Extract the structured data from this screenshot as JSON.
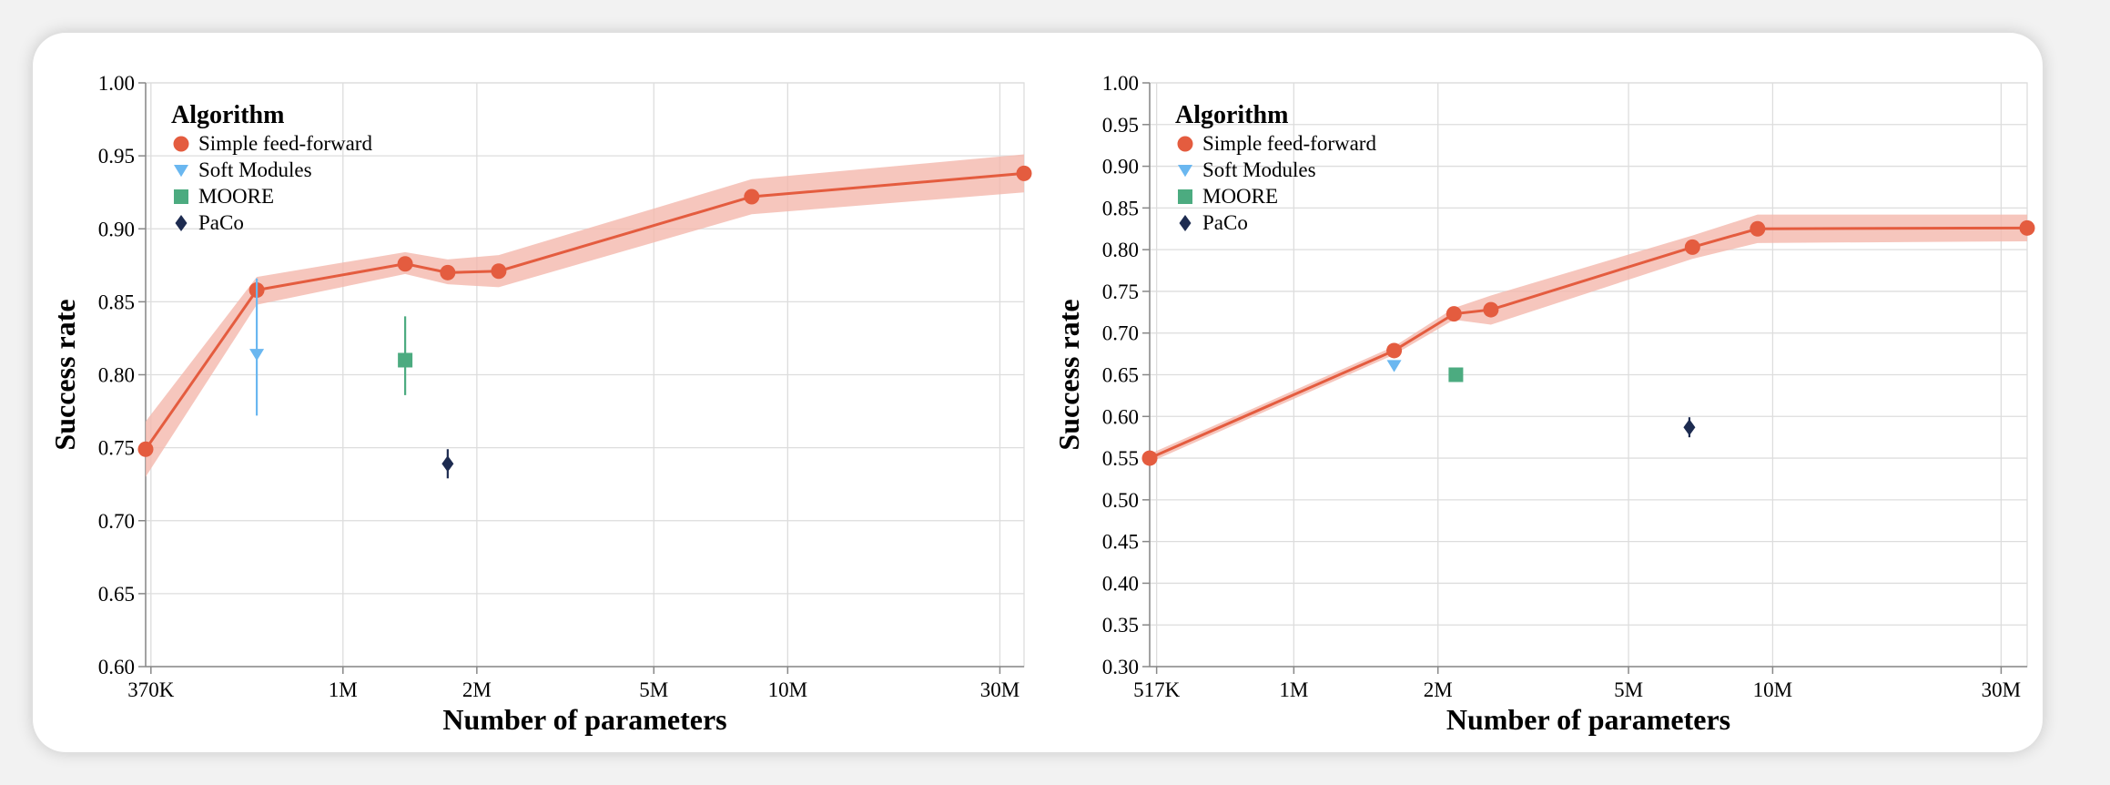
{
  "colors": {
    "simple": "#e45c3f",
    "band": "#f4b8ad",
    "soft": "#6ab7f0",
    "moore": "#4cab80",
    "paco": "#1d2b50"
  },
  "chart_data": [
    {
      "type": "line",
      "xlabel": "Number of parameters",
      "ylabel": "Success rate",
      "x_scale": "log",
      "xlim": [
        360000,
        34000000
      ],
      "ylim": [
        0.6,
        1.0
      ],
      "y_ticks": [
        "0.60",
        "0.65",
        "0.70",
        "0.75",
        "0.80",
        "0.85",
        "0.90",
        "0.95",
        "1.00"
      ],
      "x_ticks": [
        {
          "v": 370000,
          "label": "370K"
        },
        {
          "v": 1000000,
          "label": "1M"
        },
        {
          "v": 2000000,
          "label": "2M"
        },
        {
          "v": 5000000,
          "label": "5M"
        },
        {
          "v": 10000000,
          "label": "10M"
        },
        {
          "v": 30000000,
          "label": "30M"
        }
      ],
      "legend": {
        "title": "Algorithm",
        "position": "top-left",
        "entries": [
          "Simple feed-forward",
          "Soft Modules",
          "MOORE",
          "PaCo"
        ]
      },
      "series": [
        {
          "name": "Simple feed-forward",
          "x": [
            360000,
            640000,
            1380000,
            1720000,
            2240000,
            8300000,
            34000000
          ],
          "y": [
            0.749,
            0.858,
            0.876,
            0.87,
            0.871,
            0.922,
            0.938
          ],
          "band_low": [
            0.73,
            0.848,
            0.869,
            0.862,
            0.86,
            0.91,
            0.925
          ],
          "band_high": [
            0.768,
            0.867,
            0.884,
            0.879,
            0.882,
            0.934,
            0.951
          ]
        },
        {
          "name": "Soft Modules",
          "x": [
            640000
          ],
          "y": [
            0.814
          ],
          "err_low": [
            0.772
          ],
          "err_high": [
            0.866
          ]
        },
        {
          "name": "MOORE",
          "x": [
            1380000
          ],
          "y": [
            0.81
          ],
          "err_low": [
            0.786
          ],
          "err_high": [
            0.84
          ]
        },
        {
          "name": "PaCo",
          "x": [
            1720000
          ],
          "y": [
            0.739
          ],
          "err_low": [
            0.729
          ],
          "err_high": [
            0.749
          ]
        }
      ]
    },
    {
      "type": "line",
      "xlabel": "Number of parameters",
      "ylabel": "Success rate",
      "x_scale": "log",
      "xlim": [
        500000,
        34000000
      ],
      "ylim": [
        0.3,
        1.0
      ],
      "y_ticks": [
        "0.30",
        "0.35",
        "0.40",
        "0.45",
        "0.50",
        "0.55",
        "0.60",
        "0.65",
        "0.70",
        "0.75",
        "0.80",
        "0.85",
        "0.90",
        "0.95",
        "1.00"
      ],
      "x_ticks": [
        {
          "v": 517000,
          "label": "517K"
        },
        {
          "v": 1000000,
          "label": "1M"
        },
        {
          "v": 2000000,
          "label": "2M"
        },
        {
          "v": 5000000,
          "label": "5M"
        },
        {
          "v": 10000000,
          "label": "10M"
        },
        {
          "v": 30000000,
          "label": "30M"
        }
      ],
      "legend": {
        "title": "Algorithm",
        "position": "top-left",
        "entries": [
          "Simple feed-forward",
          "Soft Modules",
          "MOORE",
          "PaCo"
        ]
      },
      "series": [
        {
          "name": "Simple feed-forward",
          "x": [
            500000,
            1620000,
            2160000,
            2580000,
            6800000,
            9300000,
            34000000
          ],
          "y": [
            0.55,
            0.679,
            0.723,
            0.728,
            0.803,
            0.825,
            0.826
          ],
          "band_low": [
            0.545,
            0.674,
            0.716,
            0.71,
            0.789,
            0.808,
            0.81
          ],
          "band_high": [
            0.555,
            0.684,
            0.73,
            0.745,
            0.817,
            0.842,
            0.842
          ]
        },
        {
          "name": "Soft Modules",
          "x": [
            1620000
          ],
          "y": [
            0.661
          ],
          "err_low": [
            0.656
          ],
          "err_high": [
            0.666
          ]
        },
        {
          "name": "MOORE",
          "x": [
            2180000
          ],
          "y": [
            0.65
          ],
          "err_low": [
            0.646
          ],
          "err_high": [
            0.654
          ]
        },
        {
          "name": "PaCo",
          "x": [
            6700000
          ],
          "y": [
            0.587
          ],
          "err_low": [
            0.575
          ],
          "err_high": [
            0.599
          ]
        }
      ]
    }
  ]
}
